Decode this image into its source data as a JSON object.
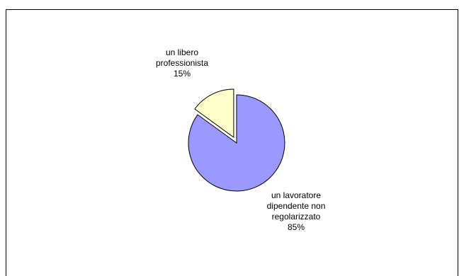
{
  "chart_data": {
    "type": "pie",
    "title": "",
    "slices": [
      {
        "label_lines": [
          "un libero",
          "professionista"
        ],
        "percent_label": "15%",
        "value": 15,
        "color": "#FFFFCC",
        "exploded": true
      },
      {
        "label_lines": [
          "un lavoratore",
          "dipendente non",
          "regolarizzato"
        ],
        "percent_label": "85%",
        "value": 85,
        "color": "#9999FF",
        "exploded": false
      }
    ],
    "start_angle_deg": 0,
    "direction": "counterclockwise",
    "legend": "none"
  }
}
